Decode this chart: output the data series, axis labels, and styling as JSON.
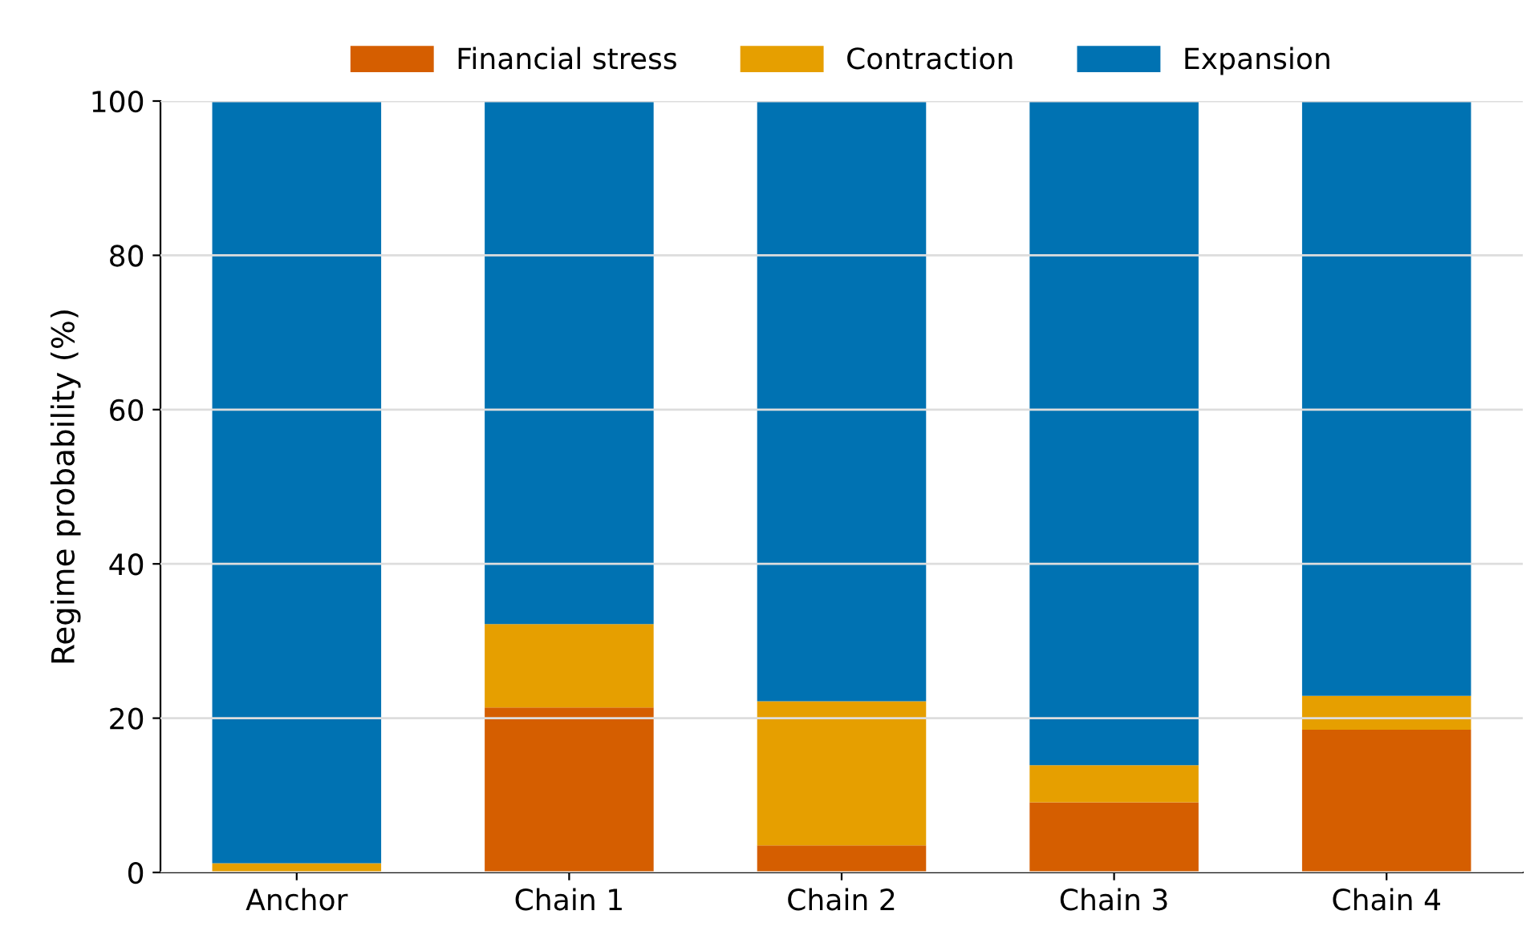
{
  "chart_data": {
    "type": "bar",
    "stacked": true,
    "ylabel": "Regime probability (%)",
    "categories": [
      "Anchor",
      "Chain 1",
      "Chain 2",
      "Chain 3",
      "Chain 4"
    ],
    "series": [
      {
        "name": "Financial stress",
        "color": "#d55e00",
        "values": [
          0,
          21.4,
          3.5,
          9.1,
          18.5
        ]
      },
      {
        "name": "Contraction",
        "color": "#e69f00",
        "values": [
          1.2,
          10.8,
          18.7,
          4.8,
          4.4
        ]
      },
      {
        "name": "Expansion",
        "color": "#0072b2",
        "values": [
          98.8,
          67.8,
          77.8,
          86.1,
          77.1
        ]
      }
    ],
    "ylim": [
      0,
      100
    ],
    "yticks": [
      0,
      20,
      40,
      60,
      80,
      100
    ],
    "grid": "y",
    "legend": "top"
  }
}
